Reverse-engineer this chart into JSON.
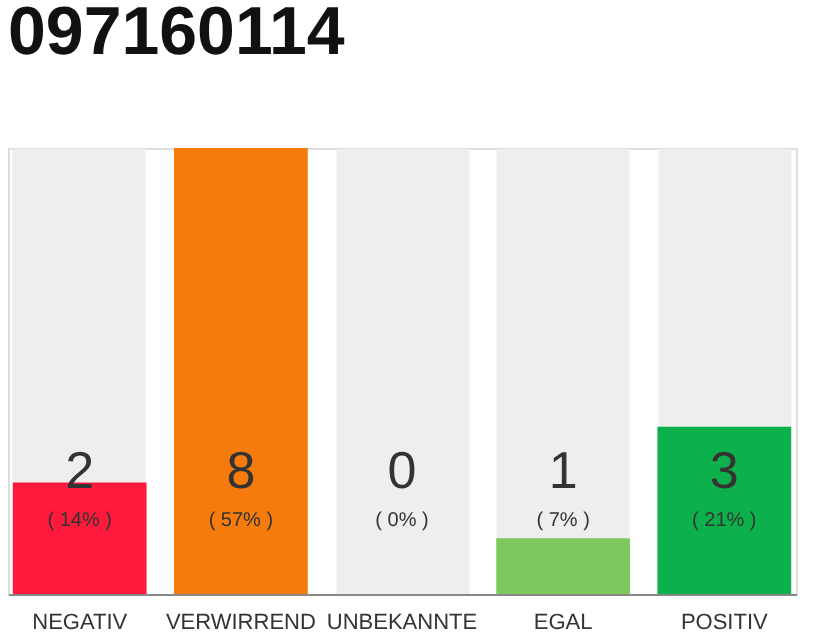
{
  "chart_data": {
    "type": "bar",
    "title": "097160114",
    "categories": [
      "NEGATIV",
      "VERWIRREND",
      "UNBEKANNTE",
      "EGAL",
      "POSITIV"
    ],
    "values": [
      2,
      8,
      0,
      1,
      3
    ],
    "colors": [
      "#ff1a3c",
      "#f47b0c",
      "#cccccc",
      "#7dc95e",
      "#0db14b"
    ],
    "data_labels": true,
    "ylim": [
      0,
      8
    ],
    "annotations": [
      "( 14% )",
      "( 57% )",
      "( 0% )",
      "( 7% )",
      "( 21% )"
    ],
    "tick_labels": "x",
    "grid": "x"
  }
}
